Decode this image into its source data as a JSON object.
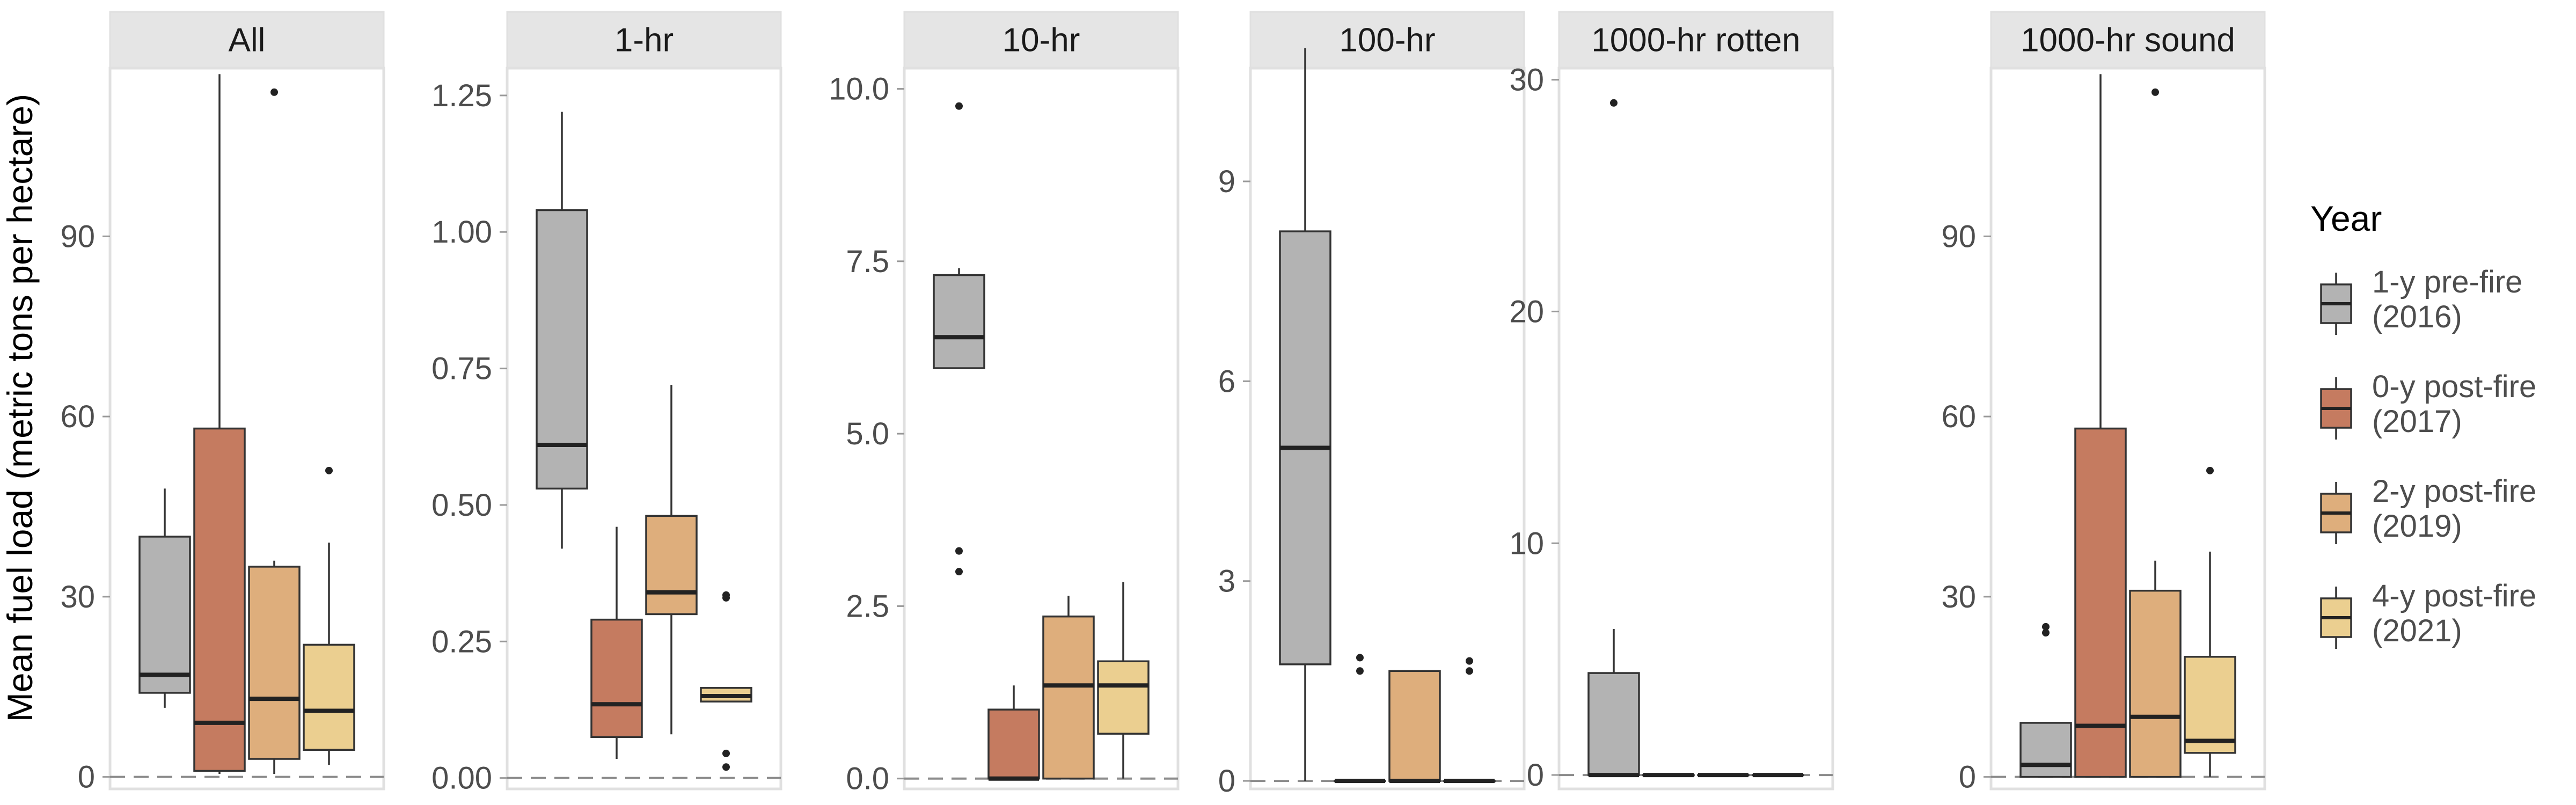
{
  "chart_data": {
    "type": "box",
    "ylabel": "Mean fuel load (metric tons per hectare)",
    "legend": {
      "title": "Year",
      "position": "right",
      "entries": [
        {
          "line1": "1-y pre-fire",
          "line2": "(2016)"
        },
        {
          "line1": "0-y post-fire",
          "line2": "(2017)"
        },
        {
          "line1": "2-y post-fire",
          "line2": "(2019)"
        },
        {
          "line1": "4-y post-fire",
          "line2": "(2021)"
        }
      ]
    },
    "series_colors": [
      "#b3b3b3",
      "#c57b60",
      "#deae7c",
      "#ebcf90"
    ],
    "reference_line": {
      "y": 0,
      "style": "dashed"
    },
    "grid": false,
    "panels": [
      {
        "title": "All",
        "ylim": [
          -2,
          118
        ],
        "yticks": [
          0,
          30,
          60,
          90
        ],
        "ytick_labels": [
          "0",
          "30",
          "60",
          "90"
        ],
        "boxes": [
          {
            "series": "1-y pre-fire (2016)",
            "min": 11.5,
            "q1": 14,
            "median": 17,
            "q3": 40,
            "max": 48,
            "outliers": []
          },
          {
            "series": "0-y post-fire (2017)",
            "min": 0.5,
            "q1": 1,
            "median": 9,
            "q3": 58,
            "max": 117,
            "outliers": []
          },
          {
            "series": "2-y post-fire (2019)",
            "min": 0.5,
            "q1": 3,
            "median": 13,
            "q3": 35,
            "max": 36,
            "outliers": [
              114
            ]
          },
          {
            "series": "4-y post-fire (2021)",
            "min": 2,
            "q1": 4.5,
            "median": 11,
            "q3": 22,
            "max": 39,
            "outliers": [
              51
            ]
          }
        ]
      },
      {
        "title": "1-hr",
        "ylim": [
          -0.02,
          1.3
        ],
        "yticks": [
          0,
          0.25,
          0.5,
          0.75,
          1.0,
          1.25
        ],
        "ytick_labels": [
          "0.00",
          "0.25",
          "0.50",
          "0.75",
          "1.00",
          "1.25"
        ],
        "boxes": [
          {
            "series": "1-y pre-fire (2016)",
            "min": 0.42,
            "q1": 0.53,
            "median": 0.61,
            "q3": 1.04,
            "max": 1.22,
            "outliers": []
          },
          {
            "series": "0-y post-fire (2017)",
            "min": 0.035,
            "q1": 0.075,
            "median": 0.135,
            "q3": 0.29,
            "max": 0.46,
            "outliers": []
          },
          {
            "series": "2-y post-fire (2019)",
            "min": 0.08,
            "q1": 0.3,
            "median": 0.34,
            "q3": 0.48,
            "max": 0.72,
            "outliers": []
          },
          {
            "series": "4-y post-fire (2021)",
            "min": 0.14,
            "q1": 0.14,
            "median": 0.15,
            "q3": 0.165,
            "max": 0.165,
            "outliers": [
              0.33,
              0.335,
              0.045,
              0.02
            ]
          }
        ]
      },
      {
        "title": "10-hr",
        "ylim": [
          -0.15,
          10.3
        ],
        "yticks": [
          0,
          2.5,
          5.0,
          7.5,
          10.0
        ],
        "ytick_labels": [
          "0.0",
          "2.5",
          "5.0",
          "7.5",
          "10.0"
        ],
        "boxes": [
          {
            "series": "1-y pre-fire (2016)",
            "min": 5.95,
            "q1": 5.95,
            "median": 6.4,
            "q3": 7.3,
            "max": 7.4,
            "outliers": [
              9.75,
              3.3,
              3.0
            ]
          },
          {
            "series": "0-y post-fire (2017)",
            "min": 0,
            "q1": 0,
            "median": 0,
            "q3": 1.0,
            "max": 1.35,
            "outliers": []
          },
          {
            "series": "2-y post-fire (2019)",
            "min": 0,
            "q1": 0,
            "median": 1.35,
            "q3": 2.35,
            "max": 2.65,
            "outliers": []
          },
          {
            "series": "4-y post-fire (2021)",
            "min": 0,
            "q1": 0.65,
            "median": 1.35,
            "q3": 1.7,
            "max": 2.85,
            "outliers": []
          }
        ]
      },
      {
        "title": "100-hr",
        "ylim": [
          -0.12,
          10.7
        ],
        "yticks": [
          0,
          3,
          6,
          9
        ],
        "ytick_labels": [
          "0",
          "3",
          "6",
          "9"
        ],
        "boxes": [
          {
            "series": "1-y pre-fire (2016)",
            "min": 0,
            "q1": 1.75,
            "median": 5.0,
            "q3": 8.25,
            "max": 11.0,
            "outliers": []
          },
          {
            "series": "0-y post-fire (2017)",
            "min": 0,
            "q1": 0,
            "median": 0,
            "q3": 0,
            "max": 0,
            "outliers": [
              1.85,
              1.65
            ]
          },
          {
            "series": "2-y post-fire (2019)",
            "min": 0,
            "q1": 0,
            "median": 0,
            "q3": 1.65,
            "max": 1.65,
            "outliers": []
          },
          {
            "series": "4-y post-fire (2021)",
            "min": 0,
            "q1": 0,
            "median": 0,
            "q3": 0,
            "max": 0,
            "outliers": [
              1.8,
              1.65
            ]
          }
        ]
      },
      {
        "title": "1000-hr rotten",
        "ylim": [
          -0.6,
          30.5
        ],
        "yticks": [
          0,
          10,
          20,
          30
        ],
        "ytick_labels": [
          "0",
          "10",
          "20",
          "30"
        ],
        "boxes": [
          {
            "series": "1-y pre-fire (2016)",
            "min": 0,
            "q1": 0,
            "median": 0,
            "q3": 4.4,
            "max": 6.3,
            "outliers": [
              29
            ]
          },
          {
            "series": "0-y post-fire (2017)",
            "min": 0,
            "q1": 0,
            "median": 0,
            "q3": 0,
            "max": 0,
            "outliers": []
          },
          {
            "series": "2-y post-fire (2019)",
            "min": 0,
            "q1": 0,
            "median": 0,
            "q3": 0,
            "max": 0,
            "outliers": []
          },
          {
            "series": "4-y post-fire (2021)",
            "min": 0,
            "q1": 0,
            "median": 0,
            "q3": 0,
            "max": 0,
            "outliers": []
          }
        ]
      },
      {
        "title": "1000-hr sound",
        "ylim": [
          -2,
          118
        ],
        "yticks": [
          0,
          30,
          60,
          90
        ],
        "ytick_labels": [
          "0",
          "30",
          "60",
          "90"
        ],
        "boxes": [
          {
            "series": "1-y pre-fire (2016)",
            "min": 0,
            "q1": 0,
            "median": 2,
            "q3": 9,
            "max": 9,
            "outliers": [
              25,
              24
            ]
          },
          {
            "series": "0-y post-fire (2017)",
            "min": 0,
            "q1": 0,
            "median": 8.5,
            "q3": 58,
            "max": 117,
            "outliers": []
          },
          {
            "series": "2-y post-fire (2019)",
            "min": 0,
            "q1": 0,
            "median": 10,
            "q3": 31,
            "max": 36,
            "outliers": [
              114
            ]
          },
          {
            "series": "4-y post-fire (2021)",
            "min": 0,
            "q1": 4,
            "median": 6,
            "q3": 20,
            "max": 37.5,
            "outliers": [
              51
            ]
          }
        ]
      }
    ]
  }
}
